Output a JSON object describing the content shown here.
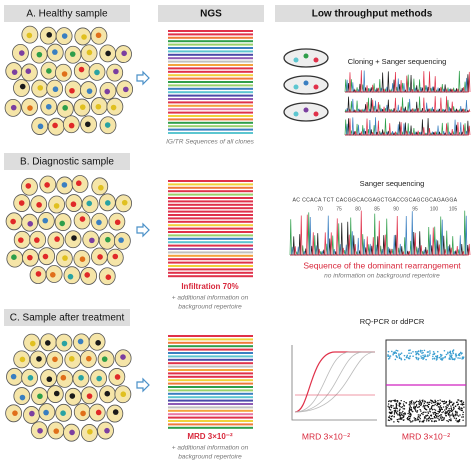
{
  "header": {
    "ngs": "NGS",
    "low_throughput": "Low throughput methods"
  },
  "rows": [
    {
      "label": "A. Healthy sample",
      "ngs_note": "IG/TR Sequences of all clones",
      "method": "Cloning + Sanger sequencing"
    },
    {
      "label": "B. Diagnostic sample",
      "ngs_result": "Infiltration 70%",
      "ngs_note": [
        "+ additional information on",
        "background repertoire"
      ],
      "method": "Sanger sequencing",
      "sequence": "AC CCACA TCT CACGGCACGAGCTGACCGCAGCGCAGAGGA",
      "positions": [
        "70",
        "75",
        "80",
        "85",
        "90",
        "95",
        "100",
        "105"
      ],
      "result": "Sequence of the dominant rearrangement",
      "note": "no information on background repertoire"
    },
    {
      "label": "C. Sample after treatment",
      "ngs_result": "MRD 3×10⁻²",
      "ngs_note": [
        "+ additional information on",
        "background repertoire"
      ],
      "method": "RQ-PCR or ddPCR",
      "pcr_result": "MRD 3×10⁻²",
      "ddpcr_result": "MRD 3×10⁻²"
    }
  ]
}
